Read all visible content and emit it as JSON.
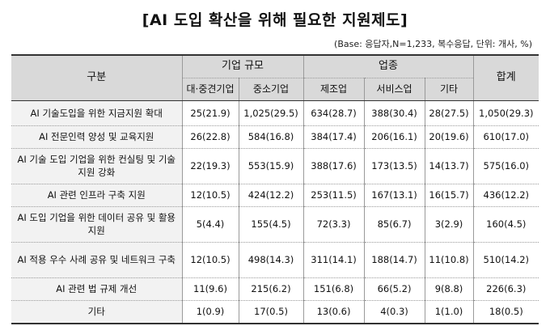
{
  "title": "[AI 도입 확산을 위해 필요한 지원제도]",
  "subtitle": "(Base: 응답자,N=1,233, 복수응답, 단위: 개사, %)",
  "headers": {
    "category": "구분",
    "group_size": "기업 규모",
    "group_industry": "업종",
    "total": "합계",
    "large": "대·중견기업",
    "small": "중소기업",
    "manufacturing": "제조업",
    "service": "서비스업",
    "other": "기타"
  },
  "rows": [
    {
      "label": "AI 기술도입을 위한 지금지원 확대",
      "large": "25(21.9)",
      "small": "1,025(29.5)",
      "manufacturing": "634(28.7)",
      "service": "388(30.4)",
      "other": "28(27.5)",
      "total": "1,050(29.3)"
    },
    {
      "label": "AI 전문인력 양성 및 교육지원",
      "large": "26(22.8)",
      "small": "584(16.8)",
      "manufacturing": "384(17.4)",
      "service": "206(16.1)",
      "other": "20(19.6)",
      "total": "610(17.0)"
    },
    {
      "label": "AI 기술 도입 기업을 위한 컨실팅 및 기술지원 강화",
      "large": "22(19.3)",
      "small": "553(15.9)",
      "manufacturing": "388(17.6)",
      "service": "173(13.5)",
      "other": "14(13.7)",
      "total": "575(16.0)"
    },
    {
      "label": "AI 관련 인프라 구축 지원",
      "large": "12(10.5)",
      "small": "424(12.2)",
      "manufacturing": "253(11.5)",
      "service": "167(13.1)",
      "other": "16(15.7)",
      "total": "436(12.2)"
    },
    {
      "label": "AI 도입 기업을 위한 데이터 공유 및 활용 지원",
      "large": "5(4.4)",
      "small": "155(4.5)",
      "manufacturing": "72(3.3)",
      "service": "85(6.7)",
      "other": "3(2.9)",
      "total": "160(4.5)"
    },
    {
      "label": "AI 적용 우수 사례 공유 및 네트워크 구축",
      "large": "12(10.5)",
      "small": "498(14.3)",
      "manufacturing": "311(14.1)",
      "service": "188(14.7)",
      "other": "11(10.8)",
      "total": "510(14.2)"
    },
    {
      "label": "AI 관련 법 규제 개선",
      "large": "11(9.6)",
      "small": "215(6.2)",
      "manufacturing": "151(6.8)",
      "service": "66(5.2)",
      "other": "9(8.8)",
      "total": "226(6.3)"
    },
    {
      "label": "기타",
      "large": "1(0.9)",
      "small": "17(0.5)",
      "manufacturing": "13(0.6)",
      "service": "4(0.3)",
      "other": "1(1.0)",
      "total": "18(0.5)"
    }
  ]
}
